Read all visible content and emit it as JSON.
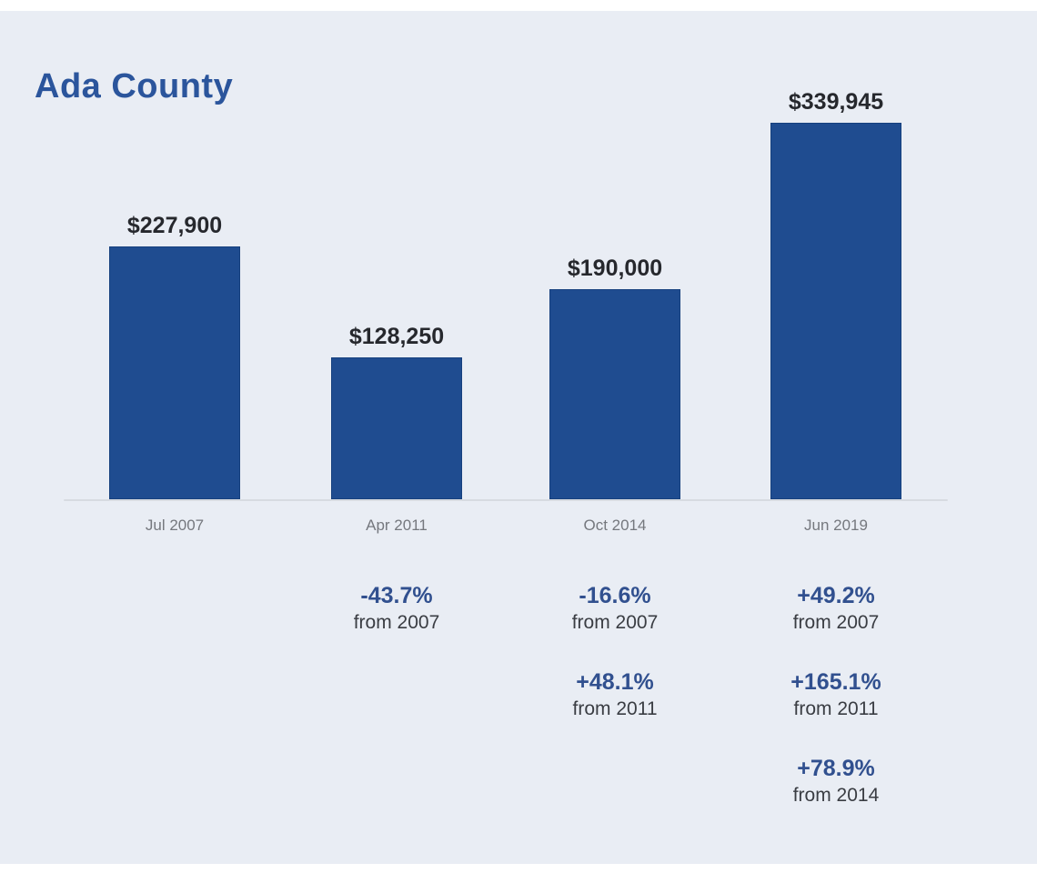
{
  "title": "Ada County",
  "colors": {
    "background": "#e9edf4",
    "bar_fill": "#1f4c90",
    "bar_border": "#16407e",
    "title_text": "#2b559c",
    "value_text": "#26282d",
    "axis_label_text": "#75787e",
    "percent_text": "#31508f",
    "from_text": "#3a3d43",
    "axis_line": "#d7dbe1"
  },
  "chart_data": {
    "type": "bar",
    "title": "Ada County",
    "categories": [
      "Jul 2007",
      "Apr 2011",
      "Oct 2014",
      "Jun 2019"
    ],
    "values": [
      227900,
      128250,
      190000,
      339945
    ],
    "value_labels": [
      "$227,900",
      "$128,250",
      "$190,000",
      "$339,945"
    ],
    "ylabel": "",
    "xlabel": "",
    "ylim": [
      0,
      339945
    ],
    "grid": false,
    "legend": "none",
    "annotations": [
      [],
      [
        {
          "pct": "-43.7%",
          "from": "from 2007"
        }
      ],
      [
        {
          "pct": "-16.6%",
          "from": "from 2007"
        },
        {
          "pct": "+48.1%",
          "from": "from 2011"
        }
      ],
      [
        {
          "pct": "+49.2%",
          "from": "from 2007"
        },
        {
          "pct": "+165.1%",
          "from": "from 2011"
        },
        {
          "pct": "+78.9%",
          "from": "from 2014"
        }
      ]
    ]
  }
}
